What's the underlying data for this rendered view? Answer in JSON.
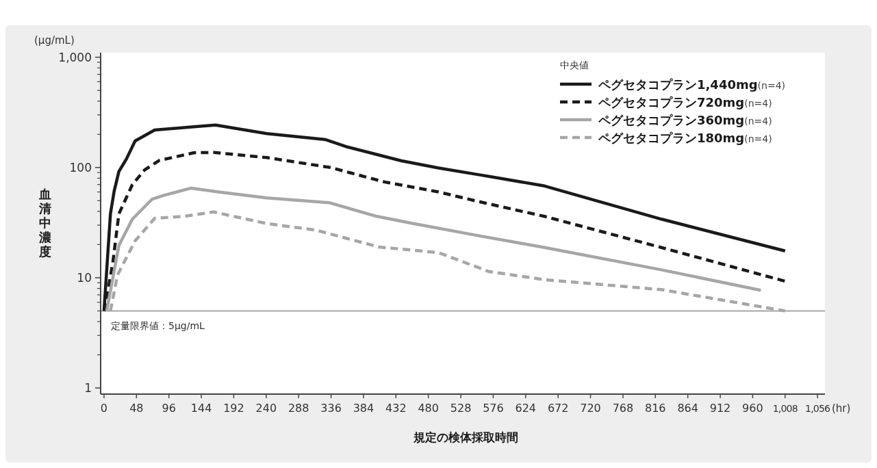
{
  "chart_data": {
    "type": "line",
    "xlabel": "規定の検体採取時間",
    "ylabel": "血清中濃度",
    "legend_title": "中央値",
    "annotations": [
      "(μg/mL)",
      "(hr)"
    ],
    "log": "y",
    "grid": false,
    "legend": "top right",
    "marker": "none",
    "xlim": [
      -5,
      1067
    ],
    "ylim": [
      0.88,
      1100
    ],
    "xticks": [
      0,
      48,
      96,
      144,
      192,
      240,
      288,
      336,
      384,
      432,
      480,
      528,
      576,
      624,
      672,
      720,
      768,
      816,
      864,
      912,
      960,
      {
        "value": 1008,
        "label": "1,008"
      },
      {
        "value": 1056,
        "label": "1,056"
      }
    ],
    "yticks": [
      1,
      10,
      100,
      {
        "value": 1000,
        "label": "1,000"
      }
    ],
    "ref_lines": [
      {
        "axis": "y",
        "value": 5,
        "label": "定量限界値：5μg/mL",
        "color": "#a6a6a6"
      }
    ],
    "series": [
      {
        "name": "**ペグセタコプラン1,440mg**(n=4)",
        "color": "#1a1a1a",
        "line_style": "solid",
        "x": [
          0,
          9.5,
          15,
          22,
          33,
          46,
          75,
          133,
          165,
          241,
          328,
          361,
          440,
          495,
          555,
          652,
          825,
          1008
        ],
        "values": [
          5,
          38,
          61,
          92,
          119,
          174,
          219,
          234,
          243,
          203,
          179,
          153,
          115,
          99,
          86,
          68,
          34,
          17.5
        ]
      },
      {
        "name": "**ペグセタコプラン720mg**(n=4)",
        "color": "#1a1a1a",
        "line_style": "dashed",
        "x": [
          0.5,
          13,
          22,
          42,
          60,
          82,
          133,
          162,
          241,
          335,
          415,
          495,
          555,
          652,
          825,
          1008
        ],
        "values": [
          5,
          13.7,
          38,
          70,
          95,
          116,
          136,
          137,
          123,
          100,
          74,
          60,
          49,
          36,
          18.8,
          9.3
        ]
      },
      {
        "name": "**ペグセタコプラン360mg**(n=4)",
        "color": "#a6a6a6",
        "line_style": "solid",
        "x": [
          4,
          22,
          42,
          71,
          89,
          129,
          169,
          241,
          333,
          404,
          458,
          555,
          652,
          825,
          972
        ],
        "values": [
          5,
          19.6,
          34,
          51.5,
          56,
          65,
          60,
          53,
          48,
          36,
          31,
          24,
          18.8,
          11.8,
          7.7
        ]
      },
      {
        "name": "**ペグセタコプラン180mg**(n=4)",
        "color": "#a6a6a6",
        "line_style": "dashed",
        "x": [
          9.5,
          20,
          46,
          75,
          118,
          162,
          241,
          314,
          407,
          495,
          555,
          569,
          652,
          825,
          1008
        ],
        "values": [
          5,
          10.6,
          21.6,
          34.6,
          36,
          39.5,
          31,
          27,
          19,
          16.9,
          12.3,
          11.4,
          9.6,
          7.8,
          5.0
        ]
      }
    ]
  }
}
